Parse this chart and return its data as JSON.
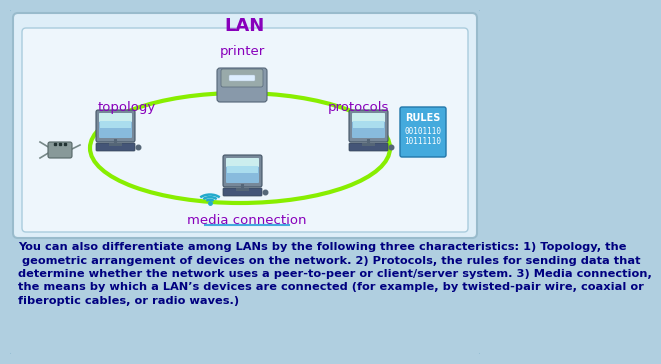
{
  "title": "LAN",
  "title_color": "#8800bb",
  "outer_bg": "#b0cfe0",
  "inner_border_color": "#8ab8d0",
  "inner_bg": "#deeef8",
  "diagram_bg": "#eef6fc",
  "labels": {
    "topology": "topology",
    "printer": "printer",
    "protocols": "protocols",
    "media": "media connection"
  },
  "label_color": "#8800bb",
  "rules_bg": "#44aadd",
  "rules_title": "RULES",
  "rules_lines": [
    "00101110",
    "10111110"
  ],
  "rules_title_color": "#ffffff",
  "rules_text_color": "#ffffff",
  "ellipse_color": "#88ee00",
  "ellipse_lw": 3.0,
  "body_text_line1": "You can also differentiate among LANs by the following three characteristics: 1) Topology, the",
  "body_text_line2": " geometric arrangement of devices on the network. 2) Protocols, the rules for sending data that",
  "body_text_line3": "determine whether the network uses a peer-to-peer or client/server system. 3) Media connection,",
  "body_text_line4": "the means by which a LAN’s devices are connected (for example, by twisted-pair wire, coaxial or",
  "body_text_line5": "fiberoptic cables, or radio waves.)",
  "body_text_color": "#000080",
  "body_fontsize": 8.2,
  "underline_color": "#44aadd",
  "monitor_screen": "#88bbdd",
  "monitor_screen_inner": "#aaddee",
  "monitor_body": "#6677aa",
  "monitor_kb": "#445577",
  "printer_body": "#8899aa",
  "hub_color": "#889999"
}
